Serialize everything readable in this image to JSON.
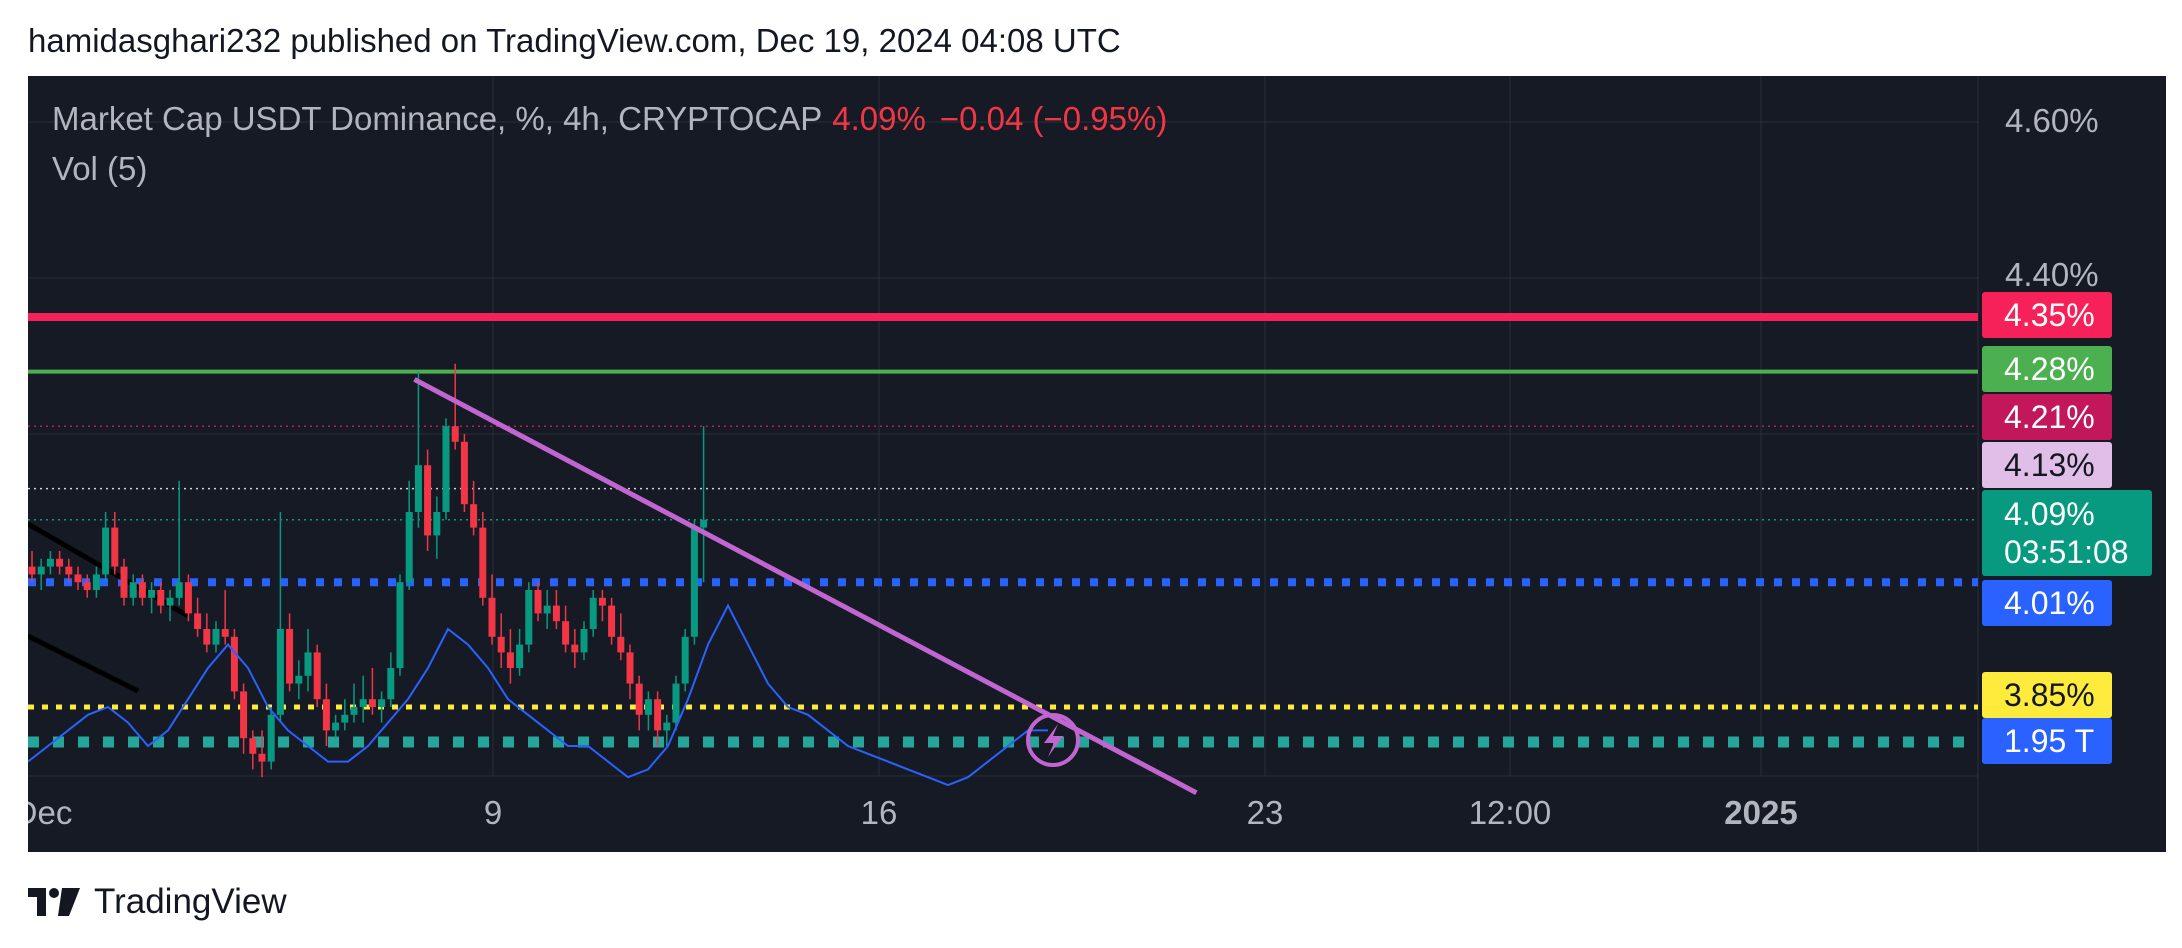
{
  "caption": "hamidasghari232 published on TradingView.com, Dec 19, 2024 04:08 UTC",
  "legend": {
    "symbol": "Market Cap USDT Dominance, %, 4h, CRYPTOCAP",
    "price": "4.09%",
    "change": "−0.04 (−0.95%)",
    "indicator": "Vol (5)"
  },
  "footer": {
    "brand": "TradingView",
    "logo_icon": "tradingview-logo-icon"
  },
  "colors": {
    "background": "#161a25",
    "up_candle": "#089981",
    "down_candle": "#f23645",
    "volume_ma": "#2962ff",
    "trendline": "#c166d1",
    "resistance_red": "#f7215a",
    "resistance_green": "#4caf50",
    "support_blue": "#2962ff",
    "support_yellow": "#ffeb3b",
    "volume_dots": "#26a69a"
  },
  "price_axis": {
    "ticks": [
      "4.60%",
      "4.40%"
    ]
  },
  "time_axis": {
    "ticks": [
      "Dec",
      "9",
      "16",
      "23",
      "12:00",
      "2025"
    ],
    "bold": [
      "2025"
    ]
  },
  "badges": [
    {
      "id": "level-435",
      "label": "4.35%",
      "bg": "#f7215a",
      "fg": "#ffffff"
    },
    {
      "id": "level-428",
      "label": "4.28%",
      "bg": "#4caf50",
      "fg": "#ffffff"
    },
    {
      "id": "level-421",
      "label": "4.21%",
      "bg": "#c2185b",
      "fg": "#ffffff"
    },
    {
      "id": "level-413",
      "label": "4.13%",
      "bg": "#e1bee7",
      "fg": "#131722"
    },
    {
      "id": "level-401",
      "label": "4.01%",
      "bg": "#2962ff",
      "fg": "#ffffff"
    },
    {
      "id": "level-385",
      "label": "3.85%",
      "bg": "#ffeb3b",
      "fg": "#131722"
    },
    {
      "id": "volume",
      "label": "1.95 T",
      "bg": "#2962ff",
      "fg": "#ffffff"
    }
  ],
  "current_badge": {
    "price": "4.09%",
    "countdown": "03:51:08",
    "bg": "#089981"
  },
  "chart_data": {
    "type": "candlestick",
    "timeframe": "4h",
    "price_unit": "%",
    "price_axis_labels": [
      "4.60%",
      "4.40%"
    ],
    "time_axis_labels": [
      "Dec",
      "9",
      "16",
      "23",
      "12:00",
      "2025"
    ],
    "horizontal_levels": [
      {
        "value": 4.35,
        "style": "solid",
        "color": "#f7215a"
      },
      {
        "value": 4.28,
        "style": "solid",
        "color": "#4caf50"
      },
      {
        "value": 4.21,
        "style": "dotted-thin",
        "color": "#c2185b"
      },
      {
        "value": 4.13,
        "style": "dotted-thin",
        "color": "#d1d4dc"
      },
      {
        "value": 4.09,
        "style": "dotted-thin",
        "color": "#089981"
      },
      {
        "value": 4.01,
        "style": "dotted-thick",
        "color": "#2962ff"
      },
      {
        "value": 3.85,
        "style": "dotted-thick",
        "color": "#ffeb3b"
      }
    ],
    "trendline": {
      "from": {
        "candle": 42,
        "price": 4.27
      },
      "to": {
        "candle": 127,
        "price": 3.74
      }
    },
    "candles": [
      [
        4.03,
        4.05,
        4.01,
        4.02
      ],
      [
        4.02,
        4.04,
        4.0,
        4.03
      ],
      [
        4.03,
        4.05,
        4.02,
        4.04
      ],
      [
        4.04,
        4.05,
        4.02,
        4.03
      ],
      [
        4.03,
        4.04,
        4.01,
        4.02
      ],
      [
        4.02,
        4.03,
        4.0,
        4.01
      ],
      [
        4.01,
        4.02,
        3.99,
        4.0
      ],
      [
        4.0,
        4.03,
        3.99,
        4.02
      ],
      [
        4.02,
        4.1,
        4.01,
        4.08
      ],
      [
        4.08,
        4.1,
        4.02,
        4.03
      ],
      [
        4.03,
        4.04,
        3.98,
        3.99
      ],
      [
        3.99,
        4.02,
        3.98,
        4.01
      ],
      [
        4.01,
        4.02,
        3.98,
        3.99
      ],
      [
        3.99,
        4.01,
        3.97,
        4.0
      ],
      [
        4.0,
        4.01,
        3.97,
        3.98
      ],
      [
        3.98,
        4.0,
        3.96,
        3.99
      ],
      [
        3.99,
        4.14,
        3.98,
        4.01
      ],
      [
        4.01,
        4.02,
        3.96,
        3.97
      ],
      [
        3.97,
        3.99,
        3.94,
        3.95
      ],
      [
        3.95,
        3.97,
        3.92,
        3.93
      ],
      [
        3.93,
        3.96,
        3.92,
        3.95
      ],
      [
        3.95,
        4.0,
        3.93,
        3.94
      ],
      [
        3.94,
        3.95,
        3.86,
        3.87
      ],
      [
        3.87,
        3.88,
        3.79,
        3.81
      ],
      [
        3.81,
        3.82,
        3.77,
        3.79
      ],
      [
        3.79,
        3.82,
        3.76,
        3.78
      ],
      [
        3.78,
        3.85,
        3.77,
        3.84
      ],
      [
        3.84,
        4.1,
        3.83,
        3.95
      ],
      [
        3.95,
        3.97,
        3.87,
        3.88
      ],
      [
        3.88,
        3.91,
        3.86,
        3.89
      ],
      [
        3.89,
        3.95,
        3.87,
        3.92
      ],
      [
        3.92,
        3.93,
        3.85,
        3.86
      ],
      [
        3.86,
        3.88,
        3.8,
        3.82
      ],
      [
        3.82,
        3.84,
        3.81,
        3.83
      ],
      [
        3.83,
        3.86,
        3.82,
        3.84
      ],
      [
        3.84,
        3.88,
        3.83,
        3.85
      ],
      [
        3.85,
        3.89,
        3.83,
        3.86
      ],
      [
        3.86,
        3.9,
        3.84,
        3.85
      ],
      [
        3.85,
        3.87,
        3.83,
        3.86
      ],
      [
        3.86,
        3.92,
        3.85,
        3.9
      ],
      [
        3.9,
        4.02,
        3.89,
        4.01
      ],
      [
        4.01,
        4.14,
        4.0,
        4.1
      ],
      [
        4.1,
        4.28,
        4.08,
        4.16
      ],
      [
        4.16,
        4.18,
        4.05,
        4.07
      ],
      [
        4.07,
        4.12,
        4.04,
        4.1
      ],
      [
        4.1,
        4.22,
        4.09,
        4.21
      ],
      [
        4.21,
        4.29,
        4.18,
        4.19
      ],
      [
        4.19,
        4.2,
        4.1,
        4.11
      ],
      [
        4.11,
        4.14,
        4.07,
        4.08
      ],
      [
        4.08,
        4.1,
        3.98,
        3.99
      ],
      [
        3.99,
        4.02,
        3.93,
        3.94
      ],
      [
        3.94,
        3.97,
        3.9,
        3.92
      ],
      [
        3.92,
        3.95,
        3.88,
        3.9
      ],
      [
        3.9,
        3.95,
        3.89,
        3.93
      ],
      [
        3.93,
        4.01,
        3.92,
        4.0
      ],
      [
        4.0,
        4.01,
        3.96,
        3.97
      ],
      [
        3.97,
        4.0,
        3.95,
        3.98
      ],
      [
        3.98,
        4.0,
        3.95,
        3.96
      ],
      [
        3.96,
        3.98,
        3.92,
        3.93
      ],
      [
        3.93,
        3.95,
        3.9,
        3.92
      ],
      [
        3.92,
        3.96,
        3.91,
        3.95
      ],
      [
        3.95,
        4.0,
        3.94,
        3.99
      ],
      [
        3.99,
        4.0,
        3.96,
        3.98
      ],
      [
        3.98,
        3.99,
        3.93,
        3.94
      ],
      [
        3.94,
        3.97,
        3.91,
        3.92
      ],
      [
        3.92,
        3.93,
        3.86,
        3.88
      ],
      [
        3.88,
        3.89,
        3.82,
        3.84
      ],
      [
        3.84,
        3.87,
        3.82,
        3.86
      ],
      [
        3.86,
        3.87,
        3.8,
        3.82
      ],
      [
        3.82,
        3.84,
        3.8,
        3.83
      ],
      [
        3.83,
        3.89,
        3.82,
        3.88
      ],
      [
        3.88,
        3.95,
        3.87,
        3.94
      ],
      [
        3.94,
        4.09,
        3.93,
        4.08
      ],
      [
        4.08,
        4.21,
        4.01,
        4.09
      ]
    ],
    "volume_ma": [
      3.78,
      3.8,
      3.82,
      3.84,
      3.85,
      3.83,
      3.8,
      3.82,
      3.86,
      3.9,
      3.93,
      3.9,
      3.85,
      3.82,
      3.8,
      3.78,
      3.78,
      3.8,
      3.83,
      3.86,
      3.9,
      3.95,
      3.93,
      3.9,
      3.86,
      3.84,
      3.82,
      3.8,
      3.8,
      3.78,
      3.76,
      3.77,
      3.8,
      3.86,
      3.93,
      3.98,
      3.93,
      3.88,
      3.85,
      3.84,
      3.82,
      3.8,
      3.79,
      3.78,
      3.77,
      3.76,
      3.75,
      3.76,
      3.78,
      3.8,
      3.82,
      3.82
    ],
    "volume_ma_unit": "price-scale proxy (overlay line)",
    "current_volume": "1.95 T"
  }
}
